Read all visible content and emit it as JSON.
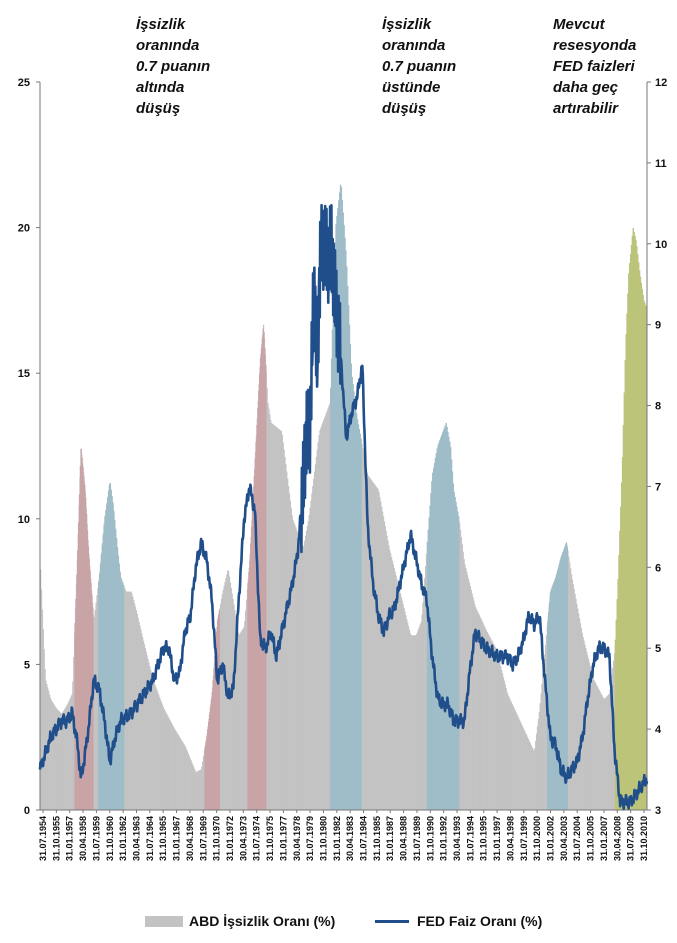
{
  "annotations": [
    {
      "id": "below",
      "text": "İşsizlik\noranında\n0.7 puanın\naltında\ndüşüş"
    },
    {
      "id": "above",
      "text": "İşsizlik\noranında\n0.7 puanın\nüstünde\ndüşüş"
    },
    {
      "id": "current",
      "text": "Mevcut\nresesyonda\nFED faizleri\ndaha geç\nartırabilir"
    }
  ],
  "legend": {
    "unemployment_label": "ABD İşsizlik Oranı (%)",
    "fed_label": "FED Faiz Oranı (%)"
  },
  "colors": {
    "unemployment_bar": "#c3c3c3",
    "fed_line": "#1f4e8a",
    "recession_pink": "#c9a4a7",
    "recession_blue": "#9ebdc8",
    "recession_current": "#bcc47a"
  },
  "chart_data": {
    "type": "area",
    "title": "",
    "legend_position": "bottom",
    "x_start_year": 1954.5,
    "x_end_year": 2011.0,
    "xtick_labels": [
      "31.07.1954",
      "31.10.1955",
      "31.01.1957",
      "30.04.1958",
      "31.07.1959",
      "31.10.1960",
      "31.01.1962",
      "30.04.1963",
      "31.07.1964",
      "31.10.1965",
      "31.01.1967",
      "30.04.1968",
      "31.07.1969",
      "31.10.1970",
      "31.01.1972",
      "30.04.1973",
      "31.07.1974",
      "31.10.1975",
      "31.01.1977",
      "30.04.1978",
      "31.07.1979",
      "31.10.1980",
      "31.01.1982",
      "30.04.1983",
      "31.07.1984",
      "31.10.1985",
      "31.01.1987",
      "30.04.1988",
      "31.07.1989",
      "31.10.1990",
      "31.01.1992",
      "30.04.1993",
      "31.07.1994",
      "31.10.1995",
      "31.01.1997",
      "30.04.1998",
      "31.07.1999",
      "31.10.2000",
      "31.01.2002",
      "30.04.2003",
      "31.07.2004",
      "31.10.2005",
      "31.01.2007",
      "30.04.2008",
      "31.07.2009",
      "31.10.2010"
    ],
    "y_left": {
      "min": 0,
      "max": 25,
      "ticks": [
        0,
        5,
        10,
        15,
        20,
        25
      ]
    },
    "y_right": {
      "min": 3,
      "max": 12,
      "ticks": [
        3,
        4,
        5,
        6,
        7,
        8,
        9,
        10,
        11,
        12
      ]
    },
    "recession_bands": [
      {
        "start": 1957.7,
        "end": 1959.4,
        "peak": 12.5,
        "color": "pink"
      },
      {
        "start": 1959.9,
        "end": 1962.3,
        "peak": 11.3,
        "color": "blue"
      },
      {
        "start": 1969.8,
        "end": 1971.2,
        "peak": 8.3,
        "color": "pink"
      },
      {
        "start": 1973.8,
        "end": 1975.5,
        "peak": 16.7,
        "color": "pink"
      },
      {
        "start": 1981.5,
        "end": 1984.4,
        "peak": 21.6,
        "color": "blue"
      },
      {
        "start": 1990.5,
        "end": 1993.5,
        "peak": 13.3,
        "color": "blue"
      },
      {
        "start": 2001.7,
        "end": 2003.6,
        "peak": 9.2,
        "color": "blue"
      },
      {
        "start": 2008.0,
        "end": 2011.0,
        "peak": 20.0,
        "color": "current"
      }
    ],
    "series": [
      {
        "name": "ABD İşsizlik Oranı (%)",
        "axis": "left",
        "x": [
          1954.5,
          1955.0,
          1955.5,
          1956.0,
          1956.5,
          1957.0,
          1957.5,
          1958.0,
          1958.3,
          1958.7,
          1959.0,
          1959.5,
          1960.0,
          1960.5,
          1961.0,
          1961.3,
          1961.7,
          1962.0,
          1962.5,
          1963.0,
          1963.5,
          1964.0,
          1965.0,
          1966.0,
          1967.0,
          1968.0,
          1969.0,
          1969.5,
          1970.0,
          1970.5,
          1971.0,
          1971.5,
          1972.0,
          1973.0,
          1973.5,
          1974.0,
          1974.5,
          1975.0,
          1975.3,
          1975.7,
          1976.0,
          1977.0,
          1978.0,
          1979.0,
          1979.5,
          1980.0,
          1980.5,
          1981.0,
          1981.5,
          1982.0,
          1982.5,
          1983.0,
          1983.5,
          1984.0,
          1984.5,
          1985.0,
          1986.0,
          1987.0,
          1988.0,
          1989.0,
          1989.5,
          1990.0,
          1990.5,
          1991.0,
          1991.5,
          1992.0,
          1992.3,
          1992.7,
          1993.0,
          1993.5,
          1994.0,
          1995.0,
          1996.0,
          1997.0,
          1998.0,
          1999.0,
          2000.0,
          2000.5,
          2001.0,
          2001.5,
          2002.0,
          2002.5,
          2003.0,
          2003.5,
          2004.0,
          2004.5,
          2005.0,
          2006.0,
          2007.0,
          2007.5,
          2008.0,
          2008.3,
          2008.7,
          2009.0,
          2009.3,
          2009.7,
          2010.0,
          2010.3,
          2010.7,
          2011.0
        ],
        "values": [
          8.6,
          4.5,
          3.8,
          3.5,
          3.3,
          3.6,
          4.0,
          9.0,
          12.5,
          11.0,
          9.0,
          6.5,
          8.0,
          10.0,
          11.3,
          10.5,
          9.0,
          8.0,
          7.5,
          7.5,
          6.8,
          6.0,
          4.5,
          3.5,
          2.8,
          2.2,
          1.3,
          1.4,
          2.5,
          4.0,
          6.5,
          7.5,
          8.3,
          6.0,
          6.3,
          8.5,
          12.0,
          15.5,
          16.7,
          14.0,
          13.3,
          13.0,
          10.0,
          9.0,
          10.0,
          11.5,
          13.0,
          13.5,
          14.0,
          20.0,
          21.6,
          19.0,
          15.0,
          13.5,
          12.5,
          11.5,
          11.0,
          9.0,
          7.5,
          6.0,
          6.0,
          6.5,
          9.0,
          11.5,
          12.5,
          13.0,
          13.3,
          12.5,
          11.0,
          10.0,
          8.5,
          7.0,
          6.2,
          5.5,
          4.0,
          3.2,
          2.4,
          2.0,
          3.5,
          5.5,
          7.5,
          8.0,
          8.7,
          9.2,
          8.0,
          7.0,
          6.0,
          4.5,
          3.8,
          4.0,
          5.5,
          8.0,
          12.0,
          16.0,
          18.5,
          20.0,
          19.5,
          18.5,
          17.5,
          17.2
        ]
      },
      {
        "name": "FED Faiz Oranı (%)",
        "axis": "right",
        "x": [
          1954.5,
          1955.0,
          1955.5,
          1956.0,
          1956.5,
          1957.0,
          1957.5,
          1958.0,
          1958.3,
          1958.6,
          1959.0,
          1959.5,
          1960.0,
          1960.5,
          1961.0,
          1961.5,
          1962.0,
          1963.0,
          1964.0,
          1965.0,
          1965.5,
          1966.0,
          1966.5,
          1967.0,
          1967.5,
          1968.0,
          1968.5,
          1969.0,
          1969.5,
          1970.0,
          1970.5,
          1971.0,
          1971.5,
          1972.0,
          1972.5,
          1973.0,
          1973.5,
          1974.0,
          1974.5,
          1975.0,
          1975.5,
          1976.0,
          1976.5,
          1977.0,
          1977.5,
          1978.0,
          1978.5,
          1979.0,
          1979.3,
          1979.6,
          1980.0,
          1980.3,
          1980.6,
          1981.0,
          1981.3,
          1981.6,
          1982.0,
          1982.5,
          1983.0,
          1983.5,
          1984.0,
          1984.5,
          1985.0,
          1985.5,
          1986.0,
          1986.5,
          1987.0,
          1987.5,
          1988.0,
          1988.5,
          1989.0,
          1989.5,
          1990.0,
          1990.5,
          1991.0,
          1991.5,
          1992.0,
          1992.5,
          1993.0,
          1993.5,
          1994.0,
          1994.5,
          1995.0,
          1995.5,
          1996.0,
          1997.0,
          1998.0,
          1998.5,
          1999.0,
          1999.5,
          2000.0,
          2000.5,
          2001.0,
          2001.5,
          2002.0,
          2002.5,
          2003.0,
          2003.5,
          2004.0,
          2004.5,
          2005.0,
          2005.5,
          2006.0,
          2006.5,
          2007.0,
          2007.5,
          2008.0,
          2008.5,
          2009.0,
          2009.5,
          2010.0,
          2010.5,
          2011.0
        ],
        "values": [
          3.5,
          3.7,
          3.9,
          4.0,
          4.1,
          4.1,
          4.2,
          3.8,
          3.4,
          3.6,
          4.0,
          4.6,
          4.5,
          4.1,
          3.6,
          3.9,
          4.1,
          4.2,
          4.4,
          4.6,
          4.8,
          5.0,
          5.0,
          4.6,
          4.7,
          5.2,
          5.4,
          6.0,
          6.3,
          6.1,
          5.6,
          4.6,
          4.8,
          4.4,
          4.5,
          5.6,
          6.6,
          7.0,
          6.7,
          5.1,
          5.0,
          5.2,
          4.9,
          5.2,
          5.5,
          5.8,
          6.2,
          7.0,
          7.7,
          7.6,
          9.5,
          8.5,
          9.9,
          10.0,
          9.8,
          10.0,
          9.3,
          8.6,
          7.6,
          7.9,
          8.1,
          8.5,
          6.5,
          5.8,
          5.4,
          5.2,
          5.4,
          5.5,
          5.8,
          6.1,
          6.4,
          6.1,
          5.8,
          5.6,
          4.9,
          4.4,
          4.3,
          4.3,
          4.1,
          4.1,
          4.1,
          4.7,
          5.2,
          5.1,
          5.0,
          4.9,
          4.9,
          4.8,
          4.9,
          5.1,
          5.4,
          5.3,
          5.4,
          4.6,
          3.9,
          3.8,
          3.5,
          3.4,
          3.5,
          3.6,
          3.9,
          4.4,
          4.8,
          5.0,
          5.0,
          4.9,
          3.7,
          3.1,
          3.1,
          3.1,
          3.2,
          3.3,
          3.4
        ]
      }
    ]
  }
}
